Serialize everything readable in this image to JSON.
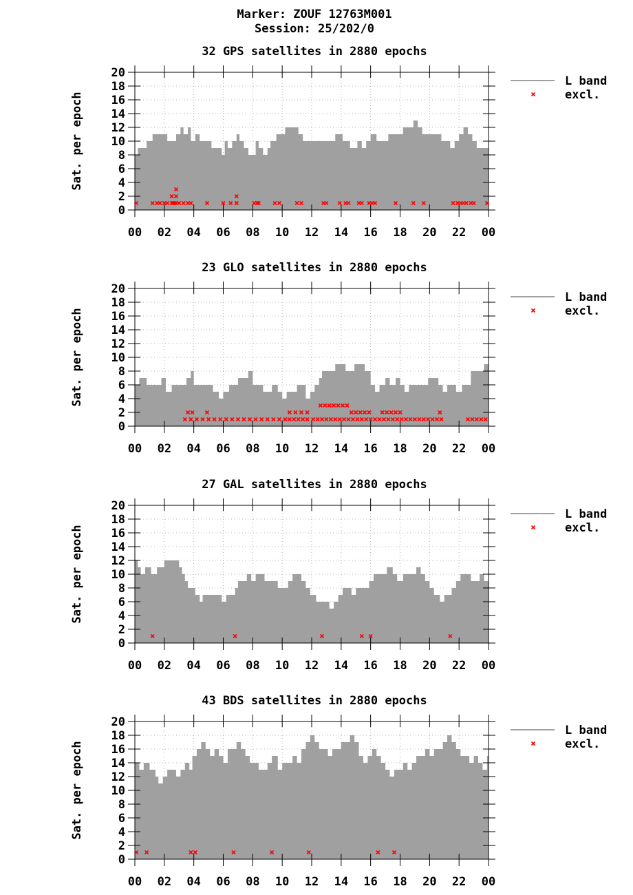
{
  "header": {
    "marker": "Marker: ZOUF 12763M001",
    "session": "Session: 25/202/0"
  },
  "colors": {
    "band": "#a0a0a0",
    "excluded": "#ff0000",
    "grid": "#a0a0a0"
  },
  "chart_data": [
    {
      "type": "area",
      "title": "32 GPS satellites in 2880 epochs",
      "ylabel": "Sat. per epoch",
      "ylim": [
        0,
        20
      ],
      "yticks": [
        "0",
        "2",
        "4",
        "6",
        "8",
        "10",
        "12",
        "14",
        "16",
        "18",
        "20"
      ],
      "xticks": [
        "00",
        "02",
        "04",
        "06",
        "08",
        "10",
        "12",
        "14",
        "16",
        "18",
        "20",
        "22",
        "00"
      ],
      "xlim_hours": [
        0,
        24
      ],
      "legend": {
        "position": "right",
        "series": [
          "L band",
          "excl."
        ]
      },
      "series": [
        {
          "name": "L band",
          "x": [
            0,
            0.2,
            0.5,
            0.8,
            1.2,
            1.4,
            1.6,
            2.2,
            2.4,
            2.8,
            3.1,
            3.3,
            3.6,
            3.8,
            4.1,
            4.4,
            4.6,
            4.9,
            5.2,
            5.4,
            5.7,
            5.9,
            6.1,
            6.3,
            6.6,
            6.9,
            7.1,
            7.4,
            7.7,
            8,
            8.2,
            8.4,
            8.7,
            9,
            9.2,
            9.4,
            9.6,
            9.9,
            10.2,
            10.5,
            10.8,
            11.1,
            11.4,
            11.7,
            12.1,
            12.5,
            12.9,
            13.2,
            13.4,
            13.6,
            13.8,
            14.1,
            14.3,
            14.6,
            14.9,
            15.1,
            15.4,
            15.7,
            16.0,
            16.4,
            16.8,
            17.2,
            17.5,
            17.8,
            18.2,
            18.4,
            18.6,
            18.9,
            19.2,
            19.5,
            19.8,
            20.1,
            20.5,
            20.8,
            21.1,
            21.4,
            21.7,
            22.0,
            22.3,
            22.6,
            22.9,
            23.2,
            23.5,
            24
          ],
          "y": [
            8,
            9,
            9,
            10,
            11,
            11,
            11,
            10,
            10,
            11,
            12,
            11,
            12,
            10,
            11,
            10,
            10,
            10,
            9,
            9,
            9,
            8,
            10,
            9,
            10,
            11,
            10,
            9,
            8,
            8,
            10,
            9,
            8,
            9,
            10,
            10,
            11,
            11,
            12,
            12,
            12,
            11,
            10,
            10,
            10,
            10,
            10,
            10,
            10,
            11,
            11,
            10,
            10,
            9,
            9,
            10,
            9,
            10,
            11,
            10,
            10,
            11,
            11,
            11,
            12,
            12,
            12,
            13,
            12,
            11,
            11,
            11,
            11,
            10,
            10,
            9,
            10,
            11,
            12,
            11,
            10,
            9,
            9,
            9
          ]
        },
        {
          "name": "excl.",
          "x": [
            0.1,
            1.2,
            1.5,
            1.7,
            2.0,
            2.2,
            2.5,
            2.6,
            2.7,
            2.8,
            3.0,
            3.3,
            3.6,
            3.8,
            4.9,
            6.0,
            6.5,
            6.9,
            6.9,
            8.1,
            8.3,
            8.4,
            9.5,
            9.8,
            11.0,
            11.3,
            12.8,
            13.0,
            13.9,
            14.3,
            14.5,
            15.2,
            15.4,
            15.9,
            16.1,
            16.3,
            17.7,
            18.9,
            19.6,
            21.6,
            21.9,
            22.1,
            22.3,
            22.5,
            22.8,
            23.0,
            23.9,
            2.5,
            2.8,
            2.8,
            6.9
          ],
          "y": [
            1,
            1,
            1,
            1,
            1,
            1,
            1,
            1,
            1,
            1,
            1,
            1,
            1,
            1,
            1,
            1,
            1,
            1,
            1,
            1,
            1,
            1,
            1,
            1,
            1,
            1,
            1,
            1,
            1,
            1,
            1,
            1,
            1,
            1,
            1,
            1,
            1,
            1,
            1,
            1,
            1,
            1,
            1,
            1,
            1,
            1,
            1,
            2,
            2,
            3,
            2
          ]
        }
      ]
    },
    {
      "type": "area",
      "title": "23 GLO satellites in 2880 epochs",
      "ylabel": "Sat. per epoch",
      "ylim": [
        0,
        20
      ],
      "yticks": [
        "0",
        "2",
        "4",
        "6",
        "8",
        "10",
        "12",
        "14",
        "16",
        "18",
        "20"
      ],
      "xticks": [
        "00",
        "02",
        "04",
        "06",
        "08",
        "10",
        "12",
        "14",
        "16",
        "18",
        "20",
        "22",
        "00"
      ],
      "xlim_hours": [
        0,
        24
      ],
      "legend": {
        "position": "right",
        "series": [
          "L band",
          "excl."
        ]
      },
      "series": [
        {
          "name": "L band",
          "x": [
            0,
            0.3,
            0.8,
            1.2,
            1.6,
            1.8,
            2.1,
            2.5,
            2.9,
            3.3,
            3.5,
            3.8,
            4.0,
            4.5,
            5.0,
            5.3,
            5.5,
            5.7,
            6.0,
            6.4,
            6.7,
            7.0,
            7.3,
            7.7,
            8.0,
            8.3,
            8.7,
            9.0,
            9.3,
            9.7,
            10.0,
            10.3,
            10.6,
            11.0,
            11.3,
            11.6,
            11.9,
            12.2,
            12.5,
            12.7,
            13.0,
            13.3,
            13.6,
            13.9,
            14.3,
            14.6,
            14.9,
            15.2,
            15.6,
            16.0,
            16.3,
            16.6,
            17.0,
            17.3,
            17.7,
            18.0,
            18.3,
            18.6,
            18.9,
            19.2,
            19.5,
            19.9,
            20.3,
            20.6,
            20.9,
            21.2,
            21.5,
            21.8,
            22.2,
            22.5,
            22.8,
            23.1,
            23.4,
            23.7,
            24
          ],
          "y": [
            6,
            7,
            6,
            6,
            6,
            7,
            5,
            6,
            6,
            6,
            7,
            8,
            6,
            6,
            6,
            5,
            5,
            4,
            5,
            6,
            6,
            7,
            7,
            8,
            6,
            6,
            5,
            5,
            6,
            5,
            4,
            5,
            5,
            6,
            6,
            4,
            5,
            6,
            7,
            8,
            8,
            8,
            9,
            9,
            8,
            8,
            9,
            9,
            8,
            6,
            5,
            6,
            7,
            6,
            7,
            6,
            5,
            6,
            6,
            6,
            6,
            7,
            7,
            6,
            5,
            6,
            6,
            5,
            6,
            6,
            8,
            8,
            8,
            9,
            8
          ]
        },
        {
          "name": "excl.",
          "x": [
            3.4,
            3.8,
            4.2,
            4.6,
            5.0,
            5.4,
            5.8,
            6.2,
            6.6,
            7.0,
            7.4,
            7.8,
            8.2,
            8.6,
            9.0,
            9.4,
            9.8,
            10.2,
            10.5,
            10.8,
            11.1,
            11.4,
            11.7,
            12.1,
            12.4,
            12.7,
            13.0,
            13.3,
            13.6,
            13.9,
            14.2,
            14.5,
            14.8,
            15.1,
            15.4,
            15.7,
            16.0,
            16.3,
            16.6,
            16.9,
            17.2,
            17.5,
            17.8,
            18.1,
            18.4,
            18.7,
            19.0,
            19.3,
            19.6,
            19.9,
            20.2,
            20.5,
            20.8,
            22.6,
            22.9,
            23.2,
            23.5,
            23.8,
            3.6,
            3.9,
            4.9,
            10.5,
            10.9,
            11.3,
            11.7,
            12.6,
            12.9,
            13.2,
            13.5,
            13.8,
            14.1,
            14.4,
            14.7,
            15.0,
            15.3,
            15.6,
            15.9,
            16.8,
            17.1,
            17.4,
            17.7,
            18.0,
            20.7
          ],
          "y": [
            1,
            1,
            1,
            1,
            1,
            1,
            1,
            1,
            1,
            1,
            1,
            1,
            1,
            1,
            1,
            1,
            1,
            1,
            1,
            1,
            1,
            1,
            1,
            1,
            1,
            1,
            1,
            1,
            1,
            1,
            1,
            1,
            1,
            1,
            1,
            1,
            1,
            1,
            1,
            1,
            1,
            1,
            1,
            1,
            1,
            1,
            1,
            1,
            1,
            1,
            1,
            1,
            1,
            1,
            1,
            1,
            1,
            1,
            2,
            2,
            2,
            2,
            2,
            2,
            2,
            3,
            3,
            3,
            3,
            3,
            3,
            3,
            2,
            2,
            2,
            2,
            2,
            2,
            2,
            2,
            2,
            2,
            2
          ]
        }
      ]
    },
    {
      "type": "area",
      "title": "27 GAL satellites in 2880 epochs",
      "ylabel": "Sat. per epoch",
      "ylim": [
        0,
        20
      ],
      "yticks": [
        "0",
        "2",
        "4",
        "6",
        "8",
        "10",
        "12",
        "14",
        "16",
        "18",
        "20"
      ],
      "xticks": [
        "00",
        "02",
        "04",
        "06",
        "08",
        "10",
        "12",
        "14",
        "16",
        "18",
        "20",
        "22",
        "00"
      ],
      "xlim_hours": [
        0,
        24
      ],
      "legend": {
        "position": "right",
        "series": [
          "L band",
          "excl."
        ]
      },
      "series": [
        {
          "name": "L band",
          "x": [
            0,
            0.2,
            0.4,
            0.7,
            1.1,
            1.5,
            2.0,
            2.4,
            3.0,
            3.2,
            3.4,
            3.6,
            3.8,
            4.1,
            4.4,
            4.6,
            4.9,
            5.3,
            5.6,
            5.9,
            6.2,
            6.5,
            6.8,
            7.0,
            7.3,
            7.6,
            7.9,
            8.2,
            8.5,
            8.8,
            9.1,
            9.4,
            9.7,
            10.0,
            10.4,
            10.7,
            11.0,
            11.3,
            11.6,
            11.9,
            12.3,
            12.7,
            12.9,
            13.2,
            13.5,
            13.8,
            14.1,
            14.4,
            14.7,
            15.0,
            15.3,
            15.6,
            15.9,
            16.2,
            16.5,
            16.8,
            17.1,
            17.5,
            17.8,
            18.2,
            18.5,
            18.8,
            19.1,
            19.4,
            19.7,
            20.0,
            20.3,
            20.7,
            21.0,
            21.3,
            21.5,
            21.8,
            22.1,
            22.4,
            22.8,
            23.1,
            23.4,
            23.7,
            24
          ],
          "y": [
            12,
            11,
            10,
            11,
            10,
            11,
            12,
            12,
            11,
            10,
            9,
            8,
            8,
            7,
            6,
            7,
            7,
            7,
            7,
            6,
            7,
            7,
            8,
            9,
            9,
            10,
            9,
            10,
            10,
            9,
            9,
            9,
            8,
            8,
            9,
            10,
            10,
            9,
            8,
            7,
            6,
            6,
            6,
            5,
            6,
            7,
            8,
            8,
            7,
            8,
            8,
            8,
            9,
            10,
            10,
            10,
            11,
            10,
            9,
            10,
            10,
            10,
            11,
            10,
            9,
            8,
            7,
            6,
            7,
            7,
            8,
            9,
            10,
            10,
            9,
            9,
            10,
            9,
            8
          ]
        },
        {
          "name": "excl.",
          "x": [
            1.2,
            6.8,
            12.7,
            15.4,
            16.0,
            21.4
          ],
          "y": [
            1,
            1,
            1,
            1,
            1,
            1
          ]
        }
      ]
    },
    {
      "type": "area",
      "title": "43 BDS satellites in 2880 epochs",
      "ylabel": "Sat. per epoch",
      "ylim": [
        0,
        20
      ],
      "yticks": [
        "0",
        "2",
        "4",
        "6",
        "8",
        "10",
        "12",
        "14",
        "16",
        "18",
        "20"
      ],
      "xticks": [
        "00",
        "02",
        "04",
        "06",
        "08",
        "10",
        "12",
        "14",
        "16",
        "18",
        "20",
        "22",
        "00"
      ],
      "xlim_hours": [
        0,
        24
      ],
      "legend": {
        "position": "right",
        "series": [
          "L band",
          "excl."
        ]
      },
      "series": [
        {
          "name": "L band",
          "x": [
            0,
            0.3,
            0.6,
            1.0,
            1.4,
            1.6,
            1.9,
            2.2,
            2.5,
            2.8,
            3.1,
            3.4,
            3.7,
            3.9,
            4.2,
            4.5,
            4.8,
            5.1,
            5.4,
            5.7,
            6.0,
            6.3,
            6.6,
            6.9,
            7.2,
            7.5,
            7.8,
            8.1,
            8.4,
            8.7,
            9.0,
            9.3,
            9.7,
            10.0,
            10.3,
            10.7,
            11.0,
            11.3,
            11.6,
            11.9,
            12.2,
            12.5,
            12.8,
            13.1,
            13.4,
            13.7,
            14.0,
            14.3,
            14.6,
            14.9,
            15.2,
            15.5,
            15.8,
            16.1,
            16.4,
            16.7,
            17.0,
            17.3,
            17.6,
            17.9,
            18.2,
            18.5,
            18.8,
            19.1,
            19.4,
            19.7,
            20.0,
            20.3,
            20.6,
            20.9,
            21.2,
            21.5,
            21.8,
            22.1,
            22.4,
            22.7,
            23.0,
            23.3,
            23.6,
            23.9,
            24
          ],
          "y": [
            14,
            13,
            14,
            13,
            12,
            11,
            12,
            13,
            13,
            12,
            13,
            14,
            13,
            15,
            16,
            17,
            16,
            15,
            16,
            15,
            14,
            16,
            16,
            17,
            16,
            15,
            14,
            14,
            13,
            13,
            14,
            15,
            13,
            14,
            14,
            15,
            14,
            16,
            17,
            18,
            17,
            16,
            16,
            15,
            16,
            16,
            17,
            17,
            18,
            17,
            15,
            14,
            15,
            16,
            15,
            14,
            13,
            12,
            13,
            13,
            14,
            13,
            14,
            15,
            15,
            16,
            15,
            16,
            16,
            17,
            18,
            17,
            16,
            15,
            15,
            14,
            15,
            14,
            13,
            15,
            14
          ]
        },
        {
          "name": "excl.",
          "x": [
            0.1,
            0.8,
            3.8,
            4.1,
            6.7,
            9.3,
            11.8,
            16.5,
            17.6
          ],
          "y": [
            1,
            1,
            1,
            1,
            1,
            1,
            1,
            1,
            1
          ]
        }
      ]
    }
  ]
}
